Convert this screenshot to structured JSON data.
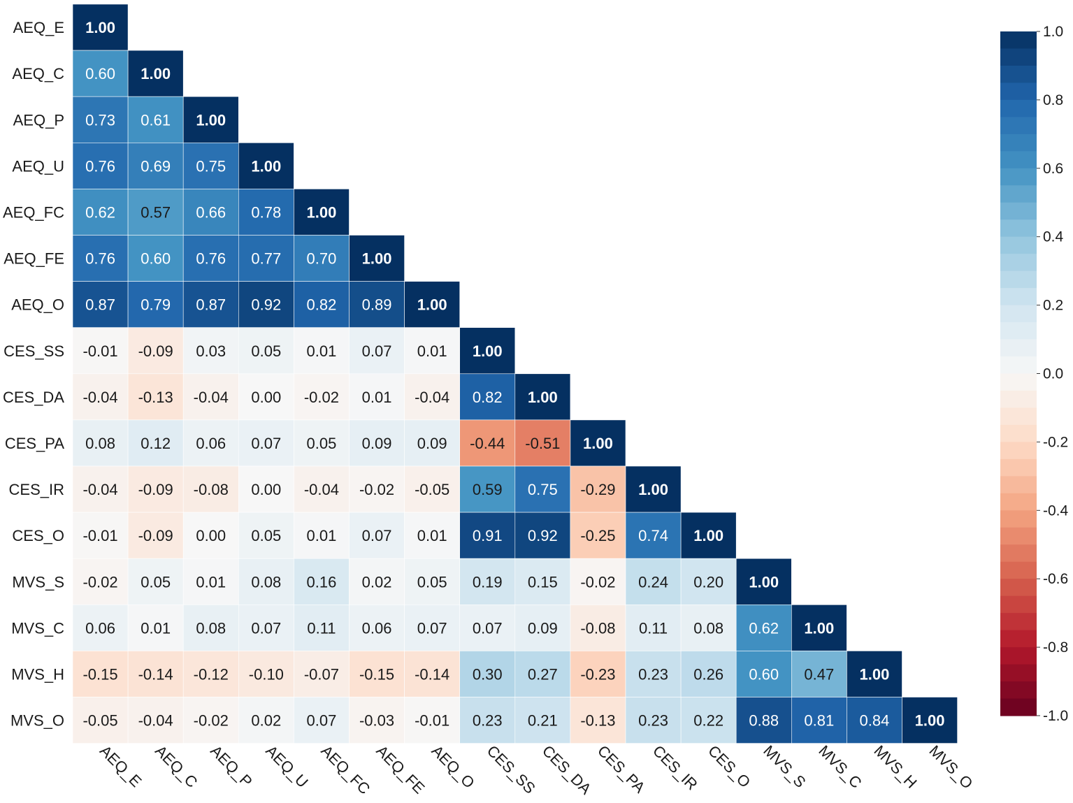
{
  "chart_data": {
    "type": "heatmap",
    "subtype": "lower-triangular-correlation-matrix",
    "title": "",
    "xlabel": "",
    "ylabel": "",
    "variables": [
      "AEQ_E",
      "AEQ_C",
      "AEQ_P",
      "AEQ_U",
      "AEQ_FC",
      "AEQ_FE",
      "AEQ_O",
      "CES_SS",
      "CES_DA",
      "CES_PA",
      "CES_IR",
      "CES_O",
      "MVS_S",
      "MVS_C",
      "MVS_H",
      "MVS_O"
    ],
    "matrix": [
      [
        1.0
      ],
      [
        0.6,
        1.0
      ],
      [
        0.73,
        0.61,
        1.0
      ],
      [
        0.76,
        0.69,
        0.75,
        1.0
      ],
      [
        0.62,
        0.57,
        0.66,
        0.78,
        1.0
      ],
      [
        0.76,
        0.6,
        0.76,
        0.77,
        0.7,
        1.0
      ],
      [
        0.87,
        0.79,
        0.87,
        0.92,
        0.82,
        0.89,
        1.0
      ],
      [
        -0.01,
        -0.09,
        0.03,
        0.05,
        0.01,
        0.07,
        0.01,
        1.0
      ],
      [
        -0.04,
        -0.13,
        -0.04,
        0.0,
        -0.02,
        0.01,
        -0.04,
        0.82,
        1.0
      ],
      [
        0.08,
        0.12,
        0.06,
        0.07,
        0.05,
        0.09,
        0.09,
        -0.44,
        -0.51,
        1.0
      ],
      [
        -0.04,
        -0.09,
        -0.08,
        0.0,
        -0.04,
        -0.02,
        -0.05,
        0.59,
        0.75,
        -0.29,
        1.0
      ],
      [
        -0.01,
        -0.09,
        0.0,
        0.05,
        0.01,
        0.07,
        0.01,
        0.91,
        0.92,
        -0.25,
        0.74,
        1.0
      ],
      [
        -0.02,
        0.05,
        0.01,
        0.08,
        0.16,
        0.02,
        0.05,
        0.19,
        0.15,
        -0.02,
        0.24,
        0.2,
        1.0
      ],
      [
        0.06,
        0.01,
        0.08,
        0.07,
        0.11,
        0.06,
        0.07,
        0.07,
        0.09,
        -0.08,
        0.11,
        0.08,
        0.62,
        1.0
      ],
      [
        -0.15,
        -0.14,
        -0.12,
        -0.1,
        -0.07,
        -0.15,
        -0.14,
        0.3,
        0.27,
        -0.23,
        0.23,
        0.26,
        0.6,
        0.47,
        1.0
      ],
      [
        -0.05,
        -0.04,
        -0.02,
        0.02,
        0.07,
        -0.03,
        -0.01,
        0.23,
        0.21,
        -0.13,
        0.23,
        0.22,
        0.88,
        0.81,
        0.84,
        1.0
      ]
    ],
    "value_format": "0.00",
    "colorbar": {
      "range": [
        -1.0,
        1.0
      ],
      "ticks": [
        "1.0",
        "0.8",
        "0.6",
        "0.4",
        "0.2",
        "0.0",
        "-0.2",
        "-0.4",
        "-0.6",
        "-0.8",
        "-1.0"
      ],
      "colormap": "RdBu",
      "negative_color": "#67001f",
      "neutral_color": "#f7f7f7",
      "positive_color": "#053061"
    },
    "x_tick_rotation": "diagonal, downward",
    "grid": false
  }
}
